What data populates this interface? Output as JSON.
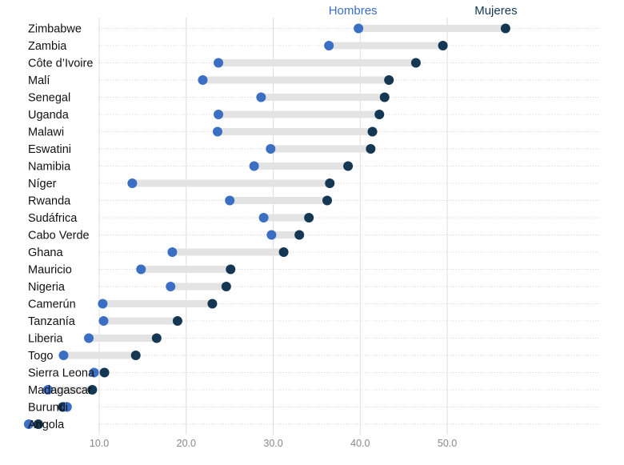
{
  "chart_data": {
    "type": "dumbbell",
    "series": [
      {
        "name": "Hombres",
        "color": "#3a6fc4"
      },
      {
        "name": "Mujeres",
        "color": "#143754"
      }
    ],
    "categories": [
      "Zimbabwe",
      "Zambia",
      "Côte d’Ivoire",
      "Malí",
      "Senegal",
      "Uganda",
      "Malawi",
      "Eswatini",
      "Namibia",
      "Níger",
      "Rwanda",
      "Sudáfrica",
      "Cabo Verde",
      "Ghana",
      "Mauricio",
      "Nigeria",
      "Camerún",
      "Tanzanía",
      "Liberia",
      "Togo",
      "Sierra Leona",
      "Madagascar",
      "Burundi",
      "Angola"
    ],
    "hombres": [
      39.8,
      36.4,
      23.7,
      21.9,
      28.6,
      23.7,
      23.6,
      29.7,
      27.8,
      13.8,
      25.0,
      28.9,
      29.8,
      18.4,
      14.8,
      18.2,
      10.4,
      10.5,
      8.8,
      5.9,
      9.4,
      4.1,
      6.3,
      1.9
    ],
    "mujeres": [
      56.7,
      49.5,
      46.4,
      43.3,
      42.8,
      42.2,
      41.4,
      41.2,
      38.6,
      36.5,
      36.2,
      34.1,
      33.0,
      31.2,
      25.1,
      24.6,
      23.0,
      19.0,
      16.6,
      14.2,
      10.6,
      9.2,
      5.8,
      3.0
    ],
    "x_ticks": [
      "10.0",
      "20.0",
      "30.0",
      "40.0",
      "50.0"
    ],
    "xlim": [
      0,
      57.5
    ],
    "grid": "vertical"
  }
}
